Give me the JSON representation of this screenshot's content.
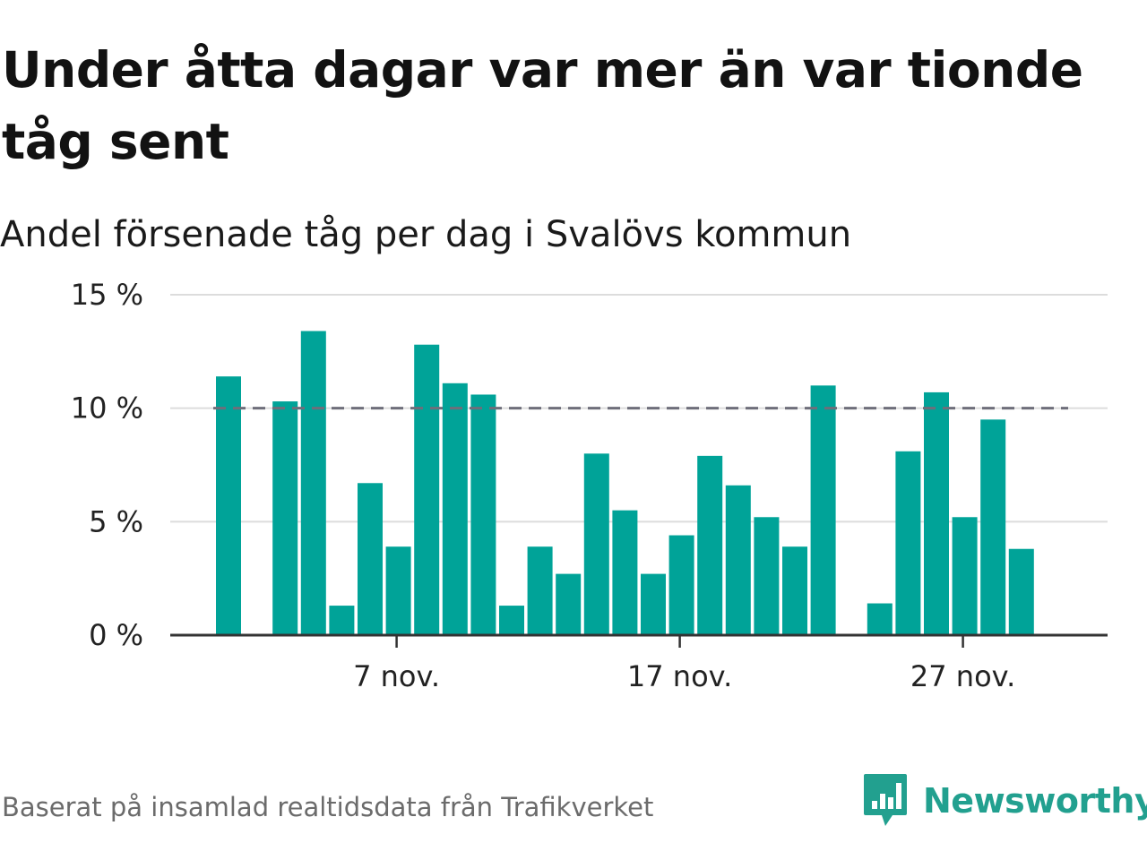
{
  "title": "Under åtta dagar var mer än var tionde tåg sent",
  "subtitle": "Andel försenade tåg per dag i Svalövs kommun",
  "source": "Baserat på insamlad realtidsdata från Trafikverket",
  "logo": {
    "text": "Newsworthy",
    "icon": "newsworthy-logo-icon"
  },
  "colors": {
    "bar": "#00a398",
    "reference": "#6e6e7a",
    "grid": "#dcdcdc",
    "axis": "#333333",
    "brand": "#22a08f"
  },
  "chart_data": {
    "type": "bar",
    "x": [
      1,
      2,
      3,
      4,
      5,
      6,
      7,
      8,
      9,
      10,
      11,
      12,
      13,
      14,
      15,
      16,
      17,
      18,
      19,
      20,
      21,
      22,
      23,
      24,
      25,
      26,
      27,
      28,
      29,
      30
    ],
    "values": [
      11.4,
      null,
      10.3,
      13.4,
      1.3,
      6.7,
      3.9,
      12.8,
      11.1,
      10.6,
      1.3,
      3.9,
      2.7,
      8.0,
      5.5,
      2.7,
      4.4,
      7.9,
      6.6,
      5.2,
      3.9,
      11.0,
      null,
      1.4,
      8.1,
      10.7,
      5.2,
      9.5,
      3.8,
      null
    ],
    "reference_line": 10,
    "ylim": [
      0,
      15
    ],
    "y_ticks": [
      {
        "value": 0,
        "label": "0 %"
      },
      {
        "value": 5,
        "label": "5 %"
      },
      {
        "value": 10,
        "label": "10 %"
      },
      {
        "value": 15,
        "label": "15 %"
      }
    ],
    "x_ticks": [
      {
        "value": 7,
        "label": "7 nov."
      },
      {
        "value": 17,
        "label": "17 nov."
      },
      {
        "value": 27,
        "label": "27 nov."
      }
    ],
    "grid": true,
    "xlabel": "",
    "ylabel": ""
  }
}
